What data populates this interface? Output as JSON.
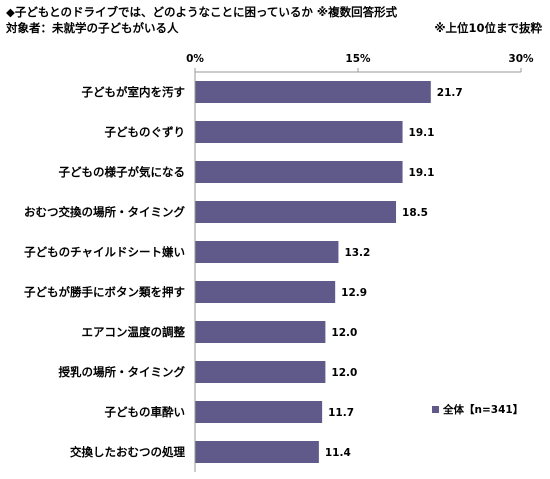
{
  "header": {
    "title": "◆子どもとのドライブでは、どのようなことに困っているか ※複数回答形式",
    "subtitle": "対象者：未就学の子どもがいる人",
    "note": "※上位10位まで抜粋"
  },
  "colors": {
    "bar": "#605a8a",
    "axis": "#999999"
  },
  "chart_data": {
    "type": "bar",
    "orientation": "horizontal",
    "categories": [
      "子どもが室内を汚す",
      "子どものぐずり",
      "子どもの様子が気になる",
      "おむつ交換の場所・タイミング",
      "子どものチャイルドシート嫌い",
      "子どもが勝手にボタン類を押す",
      "エアコン温度の調整",
      "授乳の場所・タイミング",
      "子どもの車酔い",
      "交換したおむつの処理"
    ],
    "series": [
      {
        "name": "全体【n=341】",
        "values": [
          21.7,
          19.1,
          19.1,
          18.5,
          13.2,
          12.9,
          12.0,
          12.0,
          11.7,
          11.4
        ]
      }
    ],
    "value_labels": [
      "21.7",
      "19.1",
      "19.1",
      "18.5",
      "13.2",
      "12.9",
      "12.0",
      "12.0",
      "11.7",
      "11.4"
    ],
    "xlim": [
      0,
      30
    ],
    "ticks": [
      0,
      15,
      30
    ],
    "tick_labels": [
      "0%",
      "15%",
      "30%"
    ],
    "legend_position": "bottom-right"
  }
}
